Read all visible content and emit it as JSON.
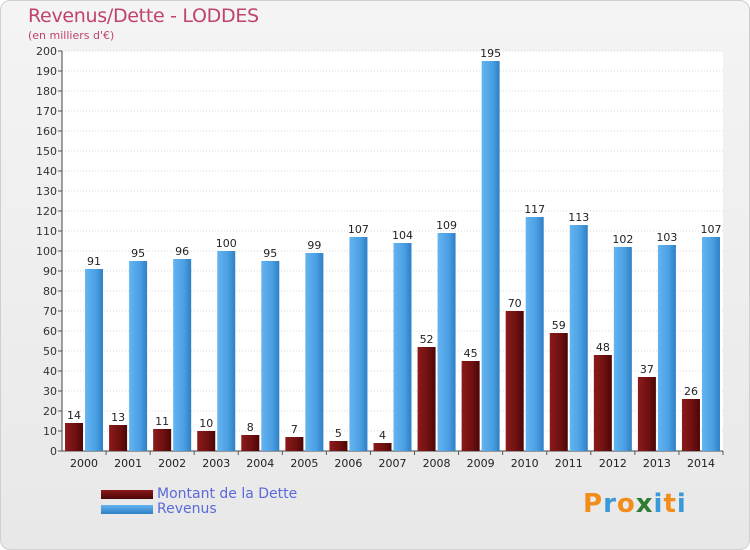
{
  "title": "Revenus/Dette - LODDES",
  "subtitle": "(en milliers d'€)",
  "colors": {
    "debt": "#7a1414",
    "revenue": "#4ea3e6",
    "title": "#c0436d",
    "legend_text": "#5a6ad8"
  },
  "chart_data": {
    "type": "bar",
    "categories": [
      "2000",
      "2001",
      "2002",
      "2003",
      "2004",
      "2005",
      "2006",
      "2007",
      "2008",
      "2009",
      "2010",
      "2011",
      "2012",
      "2013",
      "2014"
    ],
    "series": [
      {
        "name": "Montant de la Dette",
        "values": [
          14,
          13,
          11,
          10,
          8,
          7,
          5,
          4,
          52,
          45,
          70,
          59,
          48,
          37,
          26
        ]
      },
      {
        "name": "Revenus",
        "values": [
          91,
          95,
          96,
          100,
          95,
          99,
          107,
          104,
          109,
          195,
          117,
          113,
          102,
          103,
          107
        ]
      }
    ],
    "ylim": [
      0,
      200
    ],
    "yticks": [
      0,
      10,
      20,
      30,
      40,
      50,
      60,
      70,
      80,
      90,
      100,
      110,
      120,
      130,
      140,
      150,
      160,
      170,
      180,
      190,
      200
    ],
    "grid": true,
    "legend_position": "bottom-left"
  },
  "legend": [
    "Montant de la Dette",
    "Revenus"
  ],
  "logo": {
    "letters": [
      "P",
      "r",
      "o",
      "x",
      "i",
      "t",
      "i"
    ],
    "colors": [
      "#f28c1a",
      "#3a9ad9",
      "#f28c1a",
      "#2e7d32",
      "#3a9ad9",
      "#f28c1a",
      "#3a9ad9"
    ]
  }
}
